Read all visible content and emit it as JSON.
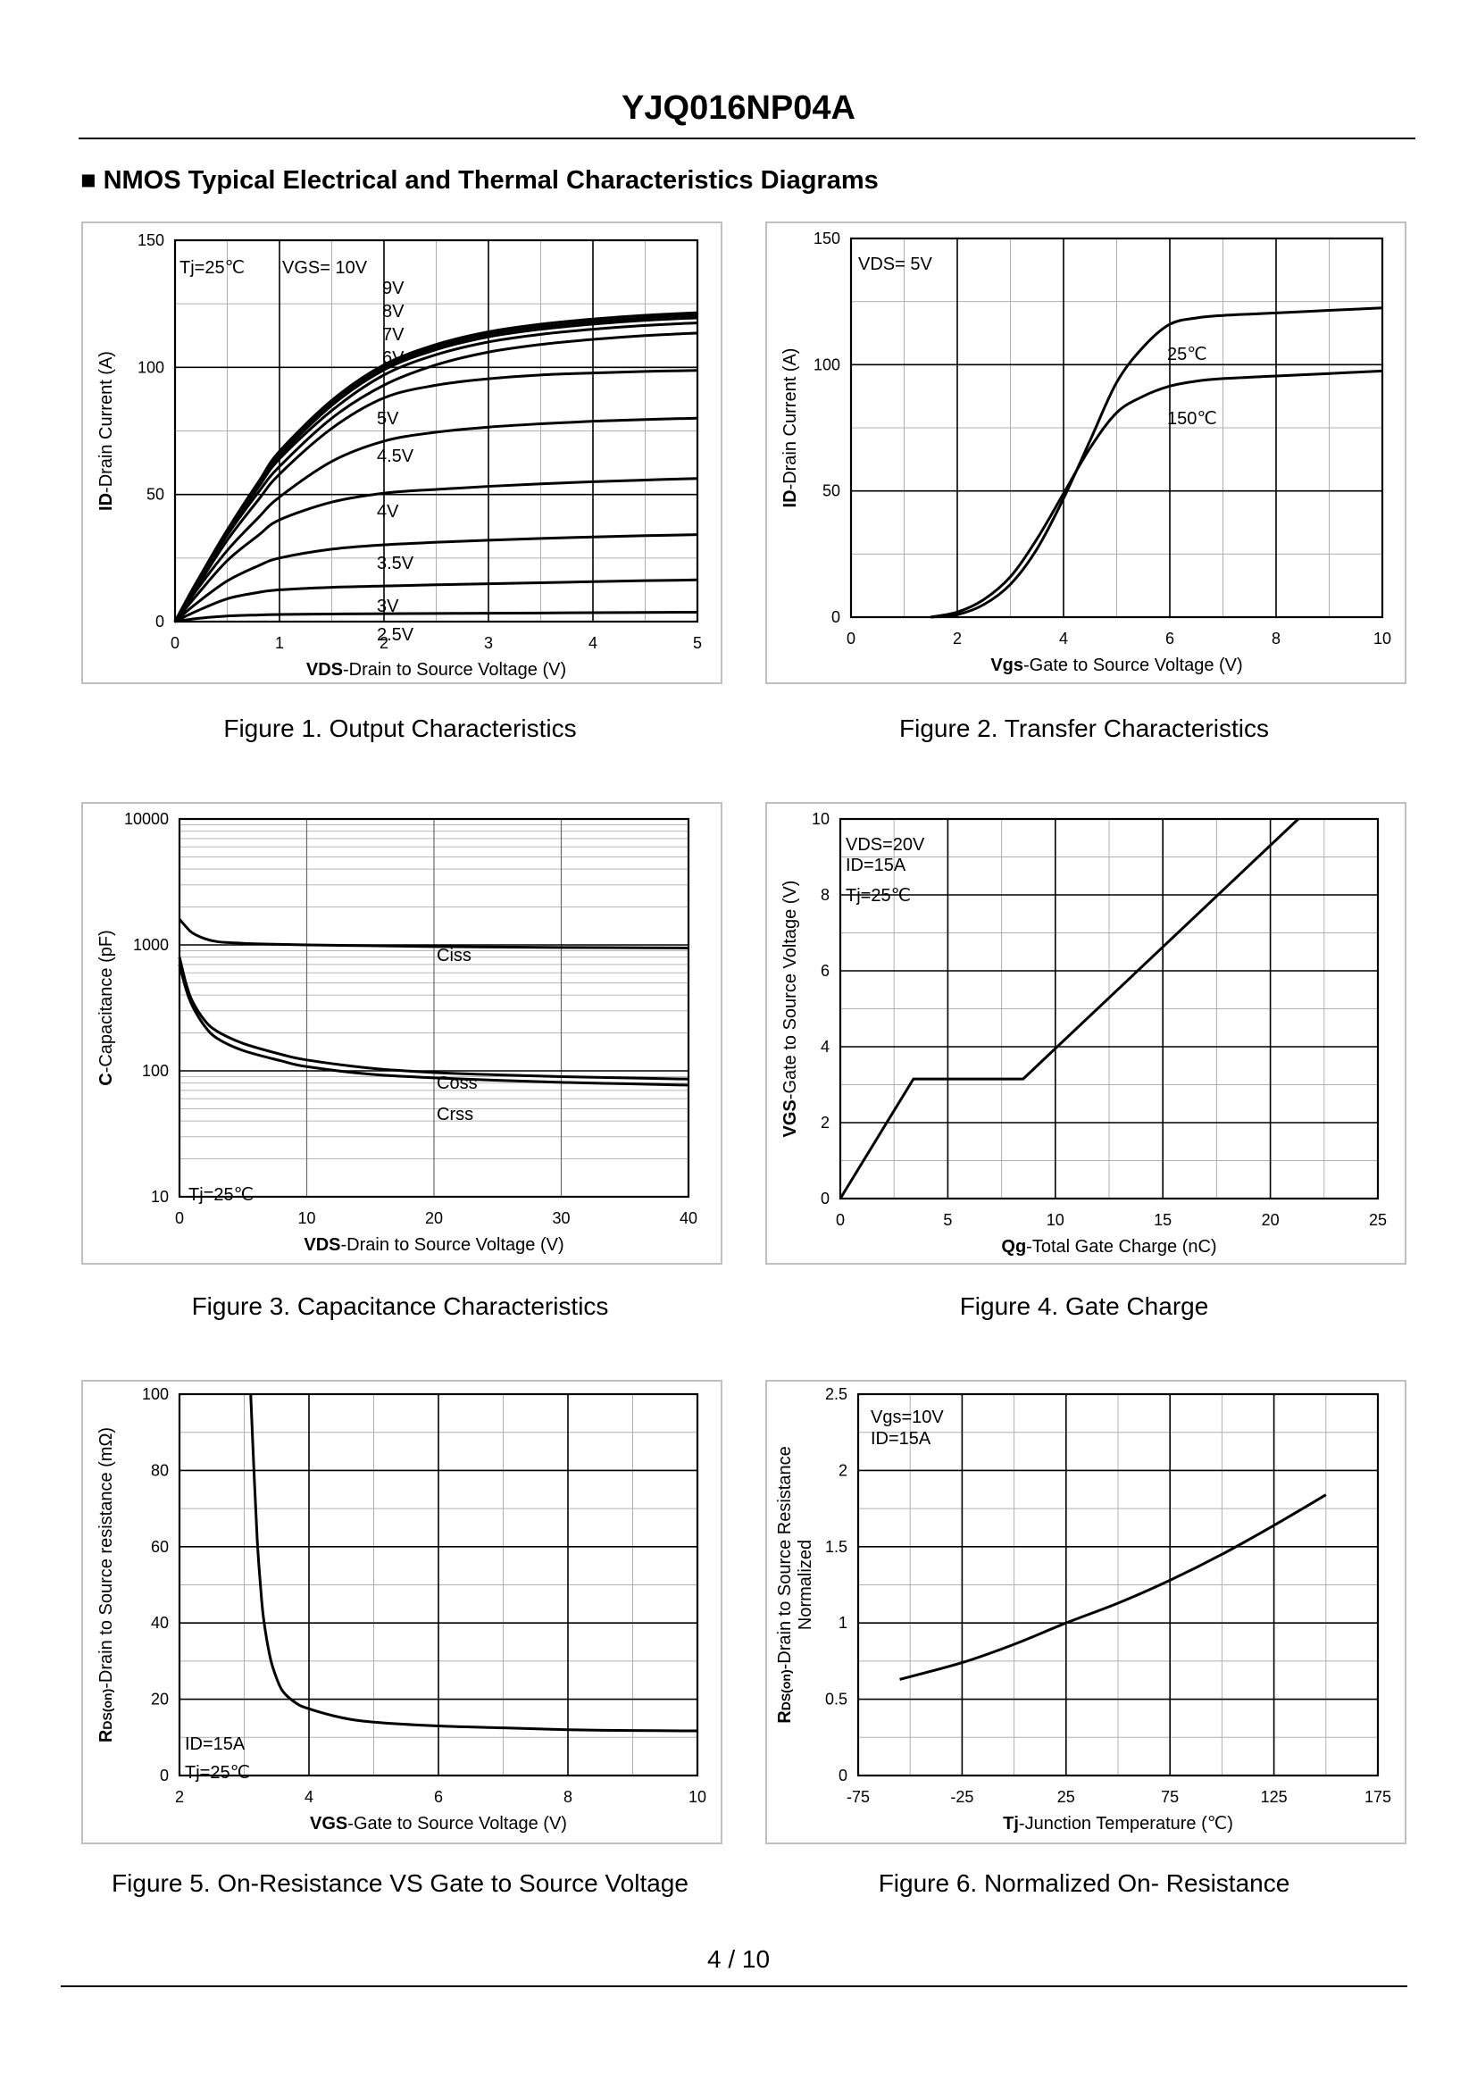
{
  "header": {
    "title": "YJQ016NP04A"
  },
  "section": {
    "title": "■ NMOS Typical Electrical and Thermal Characteristics Diagrams"
  },
  "footer": {
    "page": "4 / 10"
  },
  "chart_data": [
    {
      "id": "fig1",
      "type": "line",
      "caption": "Figure 1.  Output Characteristics",
      "xlabel_bold": "VDS",
      "xlabel_rest": "-Drain to Source Voltage (V)",
      "ylabel_bold": "ID",
      "ylabel_rest": "-Drain Current (A)",
      "xlim": [
        0,
        5
      ],
      "ylim": [
        0,
        150
      ],
      "xticks": [
        0,
        1,
        2,
        3,
        4,
        5
      ],
      "yticks": [
        0,
        50,
        100,
        150
      ],
      "xticklabels": [
        "0",
        "1",
        "2",
        "3",
        "4",
        "5"
      ],
      "yticklabels": [
        "0",
        "50",
        "100",
        "150"
      ],
      "annotations": [
        "Tj=25℃",
        "VGS= 10V",
        "9V",
        "8V",
        "7V",
        "6V",
        "5V",
        "4.5V",
        "4V",
        "3.5V",
        "3V",
        "2.5V"
      ],
      "series": [
        {
          "name": "10V",
          "x": [
            0,
            0.2,
            0.5,
            0.8,
            1,
            1.5,
            2,
            2.5,
            3,
            3.5,
            4,
            4.5,
            5
          ],
          "y": [
            0,
            15,
            36,
            55,
            67,
            87,
            101,
            109,
            114,
            117,
            119,
            120.5,
            121.5
          ]
        },
        {
          "name": "9V",
          "x": [
            0,
            0.2,
            0.5,
            0.8,
            1,
            1.5,
            2,
            2.5,
            3,
            3.5,
            4,
            4.5,
            5
          ],
          "y": [
            0,
            15,
            36,
            55,
            66,
            86,
            100,
            108,
            113,
            116,
            118,
            119.5,
            120.5
          ]
        },
        {
          "name": "8V",
          "x": [
            0,
            0.2,
            0.5,
            0.8,
            1,
            1.5,
            2,
            2.5,
            3,
            3.5,
            4,
            4.5,
            5
          ],
          "y": [
            0,
            15,
            36,
            54,
            65,
            85,
            99,
            107,
            112,
            115,
            117,
            118.5,
            119.5
          ]
        },
        {
          "name": "7V",
          "x": [
            0,
            0.2,
            0.5,
            0.8,
            1,
            1.5,
            2,
            2.5,
            3,
            3.5,
            4,
            4.5,
            5
          ],
          "y": [
            0,
            15,
            35,
            53,
            64,
            83,
            97,
            105,
            110,
            113,
            115,
            116.5,
            117.5
          ]
        },
        {
          "name": "6V",
          "x": [
            0,
            0.2,
            0.5,
            0.8,
            1,
            1.5,
            2,
            2.5,
            3,
            3.5,
            4,
            4.5,
            5
          ],
          "y": [
            0,
            14,
            34,
            51,
            61,
            80,
            93,
            101,
            106,
            109,
            111,
            112.5,
            113.5
          ]
        },
        {
          "name": "5V",
          "x": [
            0,
            0.2,
            0.5,
            0.8,
            1,
            1.5,
            2,
            2.5,
            3,
            3.5,
            4,
            4.5,
            5
          ],
          "y": [
            0,
            13,
            32,
            48,
            58,
            76,
            88,
            93,
            95.5,
            97,
            97.8,
            98.4,
            98.8
          ]
        },
        {
          "name": "4.5V",
          "x": [
            0,
            0.2,
            0.5,
            0.8,
            1,
            1.5,
            2,
            2.5,
            3,
            3.5,
            4,
            4.5,
            5
          ],
          "y": [
            0,
            12,
            28,
            41,
            49,
            63,
            71,
            74.5,
            76.5,
            77.8,
            78.8,
            79.5,
            80
          ]
        },
        {
          "name": "4V",
          "x": [
            0,
            0.2,
            0.5,
            0.8,
            1,
            1.5,
            2,
            2.5,
            3,
            3.5,
            4,
            4.5,
            5
          ],
          "y": [
            0,
            10,
            24,
            34,
            40,
            47,
            50.5,
            52,
            53.2,
            54.2,
            55,
            55.7,
            56.3
          ]
        },
        {
          "name": "3.5V",
          "x": [
            0,
            0.2,
            0.5,
            0.8,
            1,
            1.5,
            2,
            2.5,
            3,
            3.5,
            4,
            4.5,
            5
          ],
          "y": [
            0,
            7,
            16,
            22,
            25,
            28.5,
            30.2,
            31.2,
            32,
            32.7,
            33.3,
            33.8,
            34.2
          ]
        },
        {
          "name": "3V",
          "x": [
            0,
            0.2,
            0.5,
            0.8,
            1,
            1.5,
            2,
            2.5,
            3,
            3.5,
            4,
            4.5,
            5
          ],
          "y": [
            0,
            4,
            9,
            11.5,
            12.5,
            13.5,
            14,
            14.5,
            14.9,
            15.3,
            15.7,
            16.1,
            16.4
          ]
        },
        {
          "name": "2.5V",
          "x": [
            0,
            0.2,
            0.5,
            0.8,
            1,
            1.5,
            2,
            2.5,
            3,
            3.5,
            4,
            4.5,
            5
          ],
          "y": [
            0,
            1.2,
            2.2,
            2.6,
            2.8,
            3,
            3.1,
            3.2,
            3.3,
            3.4,
            3.5,
            3.6,
            3.7
          ]
        }
      ]
    },
    {
      "id": "fig2",
      "type": "line",
      "caption": "Figure 2.  Transfer Characteristics",
      "xlabel_bold": "Vgs",
      "xlabel_rest": "-Gate to Source Voltage (V)",
      "ylabel_bold": "ID",
      "ylabel_rest": "-Drain Current (A)",
      "xlim": [
        0,
        10
      ],
      "ylim": [
        0,
        150
      ],
      "xticks": [
        0,
        2,
        4,
        6,
        8,
        10
      ],
      "yticks": [
        0,
        50,
        100,
        150
      ],
      "xticklabels": [
        "0",
        "2",
        "4",
        "6",
        "8",
        "10"
      ],
      "yticklabels": [
        "0",
        "50",
        "100",
        "150"
      ],
      "annotations": [
        "VDS= 5V",
        "25℃",
        "150℃"
      ],
      "series": [
        {
          "name": "25℃",
          "x": [
            1.5,
            2,
            2.5,
            3,
            3.5,
            4,
            4.5,
            5,
            5.5,
            6,
            6.5,
            7,
            8,
            9,
            10
          ],
          "y": [
            0,
            1,
            5,
            13,
            27,
            47,
            70,
            93,
            107,
            116,
            118.5,
            119.5,
            120.5,
            121.5,
            122.5
          ]
        },
        {
          "name": "150℃",
          "x": [
            1.5,
            2,
            2.5,
            3,
            3.5,
            4,
            4.5,
            5,
            5.5,
            6,
            6.5,
            7,
            8,
            9,
            10
          ],
          "y": [
            0,
            2,
            7,
            16,
            31,
            49,
            67,
            81,
            87.5,
            91.5,
            93.5,
            94.5,
            95.5,
            96.5,
            97.5
          ]
        }
      ]
    },
    {
      "id": "fig3",
      "type": "line",
      "caption": "Figure 3.  Capacitance Characteristics",
      "xlabel_bold": "VDS",
      "xlabel_rest": "-Drain to Source Voltage (V)",
      "ylabel_bold": "C",
      "ylabel_rest": "-Capacitance (pF)",
      "xlim": [
        0,
        40
      ],
      "ylim": [
        10,
        10000
      ],
      "yscale": "log",
      "xticks": [
        0,
        10,
        20,
        30,
        40
      ],
      "yticks": [
        10,
        100,
        1000,
        10000
      ],
      "xticklabels": [
        "0",
        "10",
        "20",
        "30",
        "40"
      ],
      "yticklabels": [
        "10",
        "100",
        "1000",
        "10000"
      ],
      "annotations": [
        "Ciss",
        "Coss",
        "Crss",
        "Tj=25℃"
      ],
      "series": [
        {
          "name": "Ciss",
          "x": [
            0,
            0.5,
            1,
            2,
            3,
            5,
            8,
            10,
            15,
            20,
            25,
            30,
            35,
            40
          ],
          "y": [
            1600,
            1400,
            1250,
            1120,
            1060,
            1030,
            1010,
            1000,
            985,
            970,
            962,
            955,
            950,
            945
          ]
        },
        {
          "name": "Coss",
          "x": [
            0,
            0.5,
            1,
            2,
            3,
            5,
            8,
            10,
            15,
            20,
            25,
            30,
            35,
            40
          ],
          "y": [
            800,
            500,
            360,
            250,
            205,
            165,
            135,
            122,
            105,
            97,
            93,
            90,
            88,
            86
          ]
        },
        {
          "name": "Crss",
          "x": [
            0,
            0.5,
            1,
            2,
            3,
            5,
            8,
            10,
            15,
            20,
            25,
            30,
            35,
            40
          ],
          "y": [
            700,
            450,
            330,
            225,
            180,
            145,
            120,
            108,
            94,
            88,
            84,
            81,
            79,
            77
          ]
        }
      ]
    },
    {
      "id": "fig4",
      "type": "line",
      "caption": "Figure 4.  Gate Charge",
      "xlabel_bold": "Qg",
      "xlabel_rest": "-Total Gate Charge (nC)",
      "ylabel_bold": "VGS",
      "ylabel_rest": "-Gate to Source Voltage (V)",
      "xlim": [
        0,
        25
      ],
      "ylim": [
        0,
        10
      ],
      "xticks": [
        0,
        5,
        10,
        15,
        20,
        25
      ],
      "yticks": [
        0,
        2,
        4,
        6,
        8,
        10
      ],
      "xticklabels": [
        "0",
        "5",
        "10",
        "15",
        "20",
        "25"
      ],
      "yticklabels": [
        "0",
        "2",
        "4",
        "6",
        "8",
        "10"
      ],
      "annotations": [
        "VDS=20V",
        "ID=15A",
        "Tj=25℃"
      ],
      "series": [
        {
          "name": "VGS",
          "x": [
            0,
            3.4,
            8.5,
            21.3
          ],
          "y": [
            0,
            3.15,
            3.15,
            10
          ]
        }
      ]
    },
    {
      "id": "fig5",
      "type": "line",
      "caption": "Figure 5.  On-Resistance VS Gate to Source Voltage",
      "xlabel_bold": "VGS",
      "xlabel_rest": "-Gate to Source Voltage (V)",
      "ylabel_main": "R",
      "ylabel_sub": "DS(on)",
      "ylabel_rest": "-Drain to Source resistance (mΩ)",
      "xlim": [
        2,
        10
      ],
      "ylim": [
        0,
        100
      ],
      "xticks": [
        2,
        4,
        6,
        8,
        10
      ],
      "yticks": [
        0,
        20,
        40,
        60,
        80,
        100
      ],
      "xticklabels": [
        "2",
        "4",
        "6",
        "8",
        "10"
      ],
      "yticklabels": [
        "0",
        "20",
        "40",
        "60",
        "80",
        "100"
      ],
      "annotations": [
        "ID=15A",
        "Tj=25℃"
      ],
      "series": [
        {
          "name": "RDS(on)",
          "x": [
            3.1,
            3.15,
            3.2,
            3.25,
            3.3,
            3.4,
            3.5,
            3.6,
            3.8,
            4,
            4.5,
            5,
            6,
            7,
            8,
            9,
            10
          ],
          "y": [
            100,
            80,
            62,
            50,
            41,
            31,
            25.5,
            22,
            19,
            17.5,
            15.2,
            14,
            13,
            12.5,
            12,
            11.8,
            11.7
          ]
        }
      ]
    },
    {
      "id": "fig6",
      "type": "line",
      "caption": "Figure 6.  Normalized On- Resistance",
      "xlabel_bold": "Tj",
      "xlabel_rest": "-Junction  Temperature (℃)",
      "ylabel_main": "R",
      "ylabel_sub": "DS(on)",
      "ylabel_rest": "-Drain to Source Resistance",
      "ylabel_line2": "Normalized",
      "xlim": [
        -75,
        175
      ],
      "ylim": [
        0,
        2.5
      ],
      "xticks": [
        -75,
        -25,
        25,
        75,
        125,
        175
      ],
      "yticks": [
        0,
        0.5,
        1,
        1.5,
        2,
        2.5
      ],
      "xticklabels": [
        "-75",
        "-25",
        "25",
        "75",
        "125",
        "175"
      ],
      "yticklabels": [
        "0",
        "0.5",
        "1",
        "1.5",
        "2",
        "2.5"
      ],
      "annotations": [
        "Vgs=10V",
        "ID=15A"
      ],
      "series": [
        {
          "name": "Normalized",
          "x": [
            -55,
            -25,
            0,
            25,
            50,
            75,
            100,
            125,
            150
          ],
          "y": [
            0.63,
            0.74,
            0.86,
            1,
            1.13,
            1.28,
            1.45,
            1.64,
            1.84
          ]
        }
      ]
    }
  ]
}
